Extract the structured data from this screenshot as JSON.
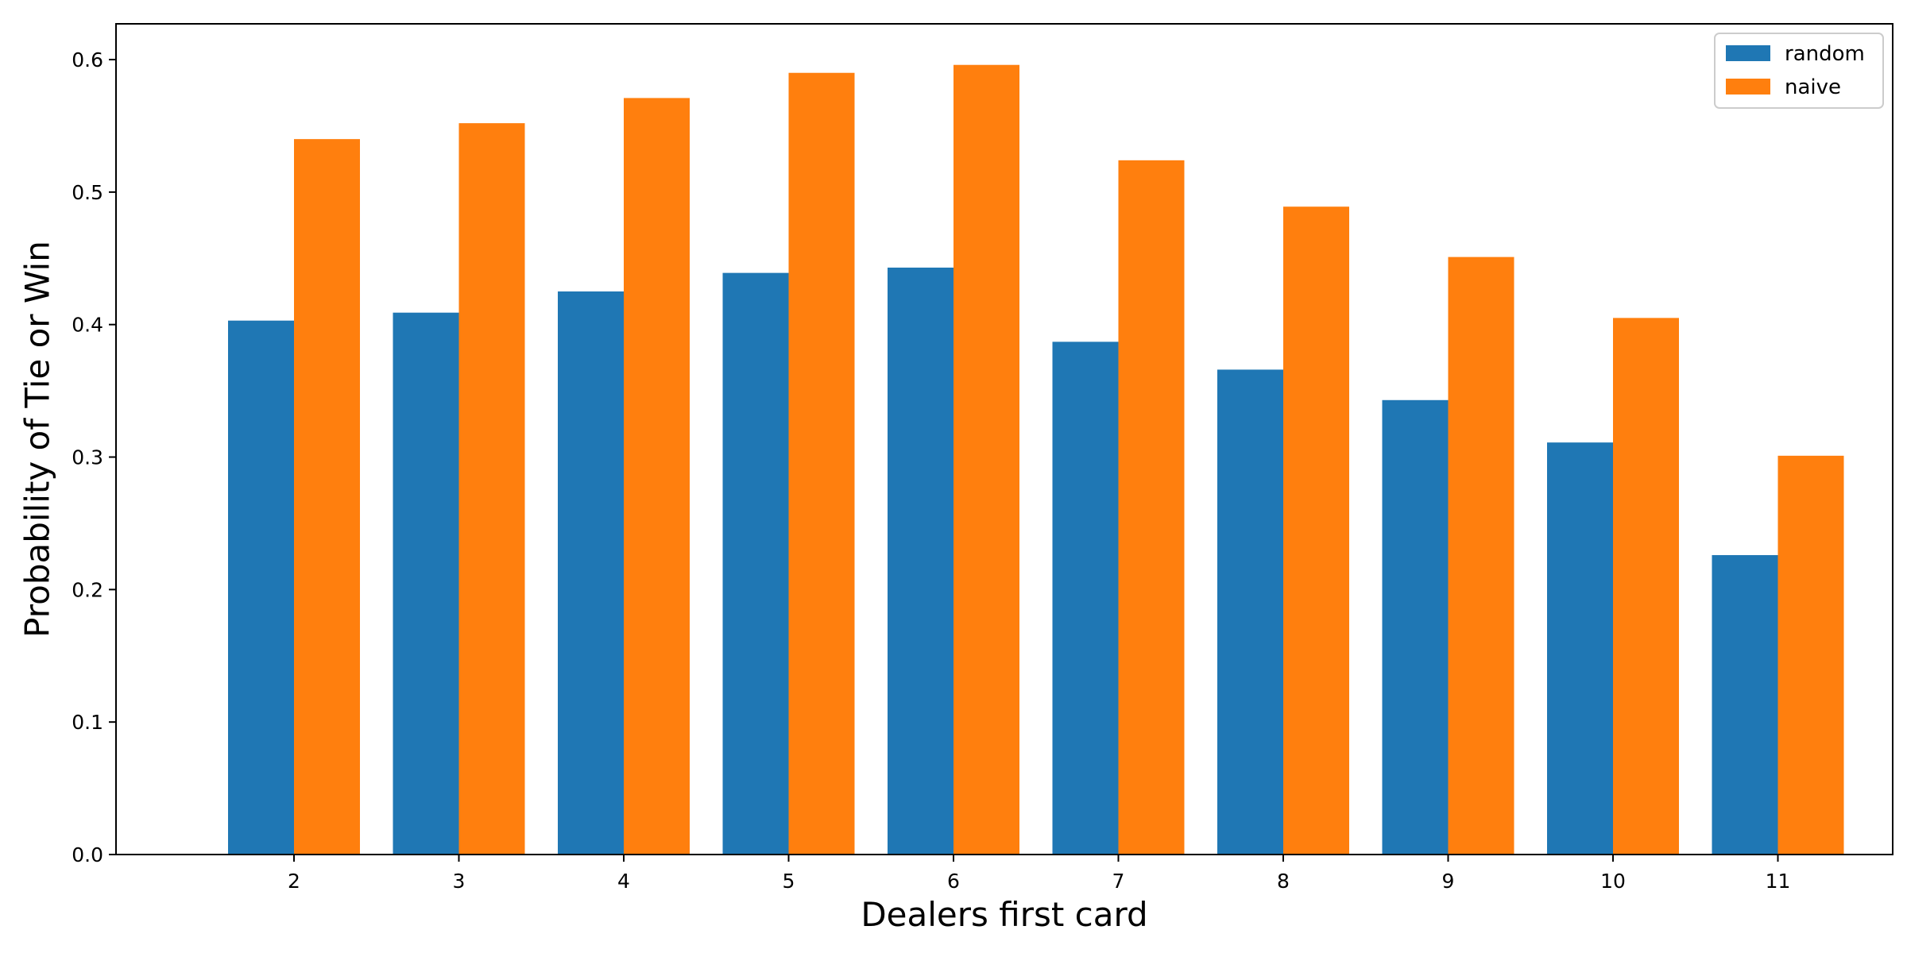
{
  "chart_data": {
    "type": "bar",
    "title": "",
    "xlabel": "Dealers first card",
    "ylabel": "Probability of Tie or Win",
    "categories": [
      "2",
      "3",
      "4",
      "5",
      "6",
      "7",
      "8",
      "9",
      "10",
      "11"
    ],
    "ylim": [
      0,
      0.627
    ],
    "yticks": [
      0.0,
      0.1,
      0.2,
      0.3,
      0.4,
      0.5,
      0.6
    ],
    "ytick_labels": [
      "0.0",
      "0.1",
      "0.2",
      "0.3",
      "0.4",
      "0.5",
      "0.6"
    ],
    "grid": false,
    "legend_position": "top-right",
    "series": [
      {
        "name": "random",
        "color": "#1f77b4",
        "values": [
          0.403,
          0.409,
          0.425,
          0.439,
          0.443,
          0.387,
          0.366,
          0.343,
          0.311,
          0.226
        ]
      },
      {
        "name": "naive",
        "color": "#ff7f0e",
        "values": [
          0.54,
          0.552,
          0.571,
          0.59,
          0.596,
          0.524,
          0.489,
          0.451,
          0.405,
          0.301
        ]
      }
    ]
  }
}
